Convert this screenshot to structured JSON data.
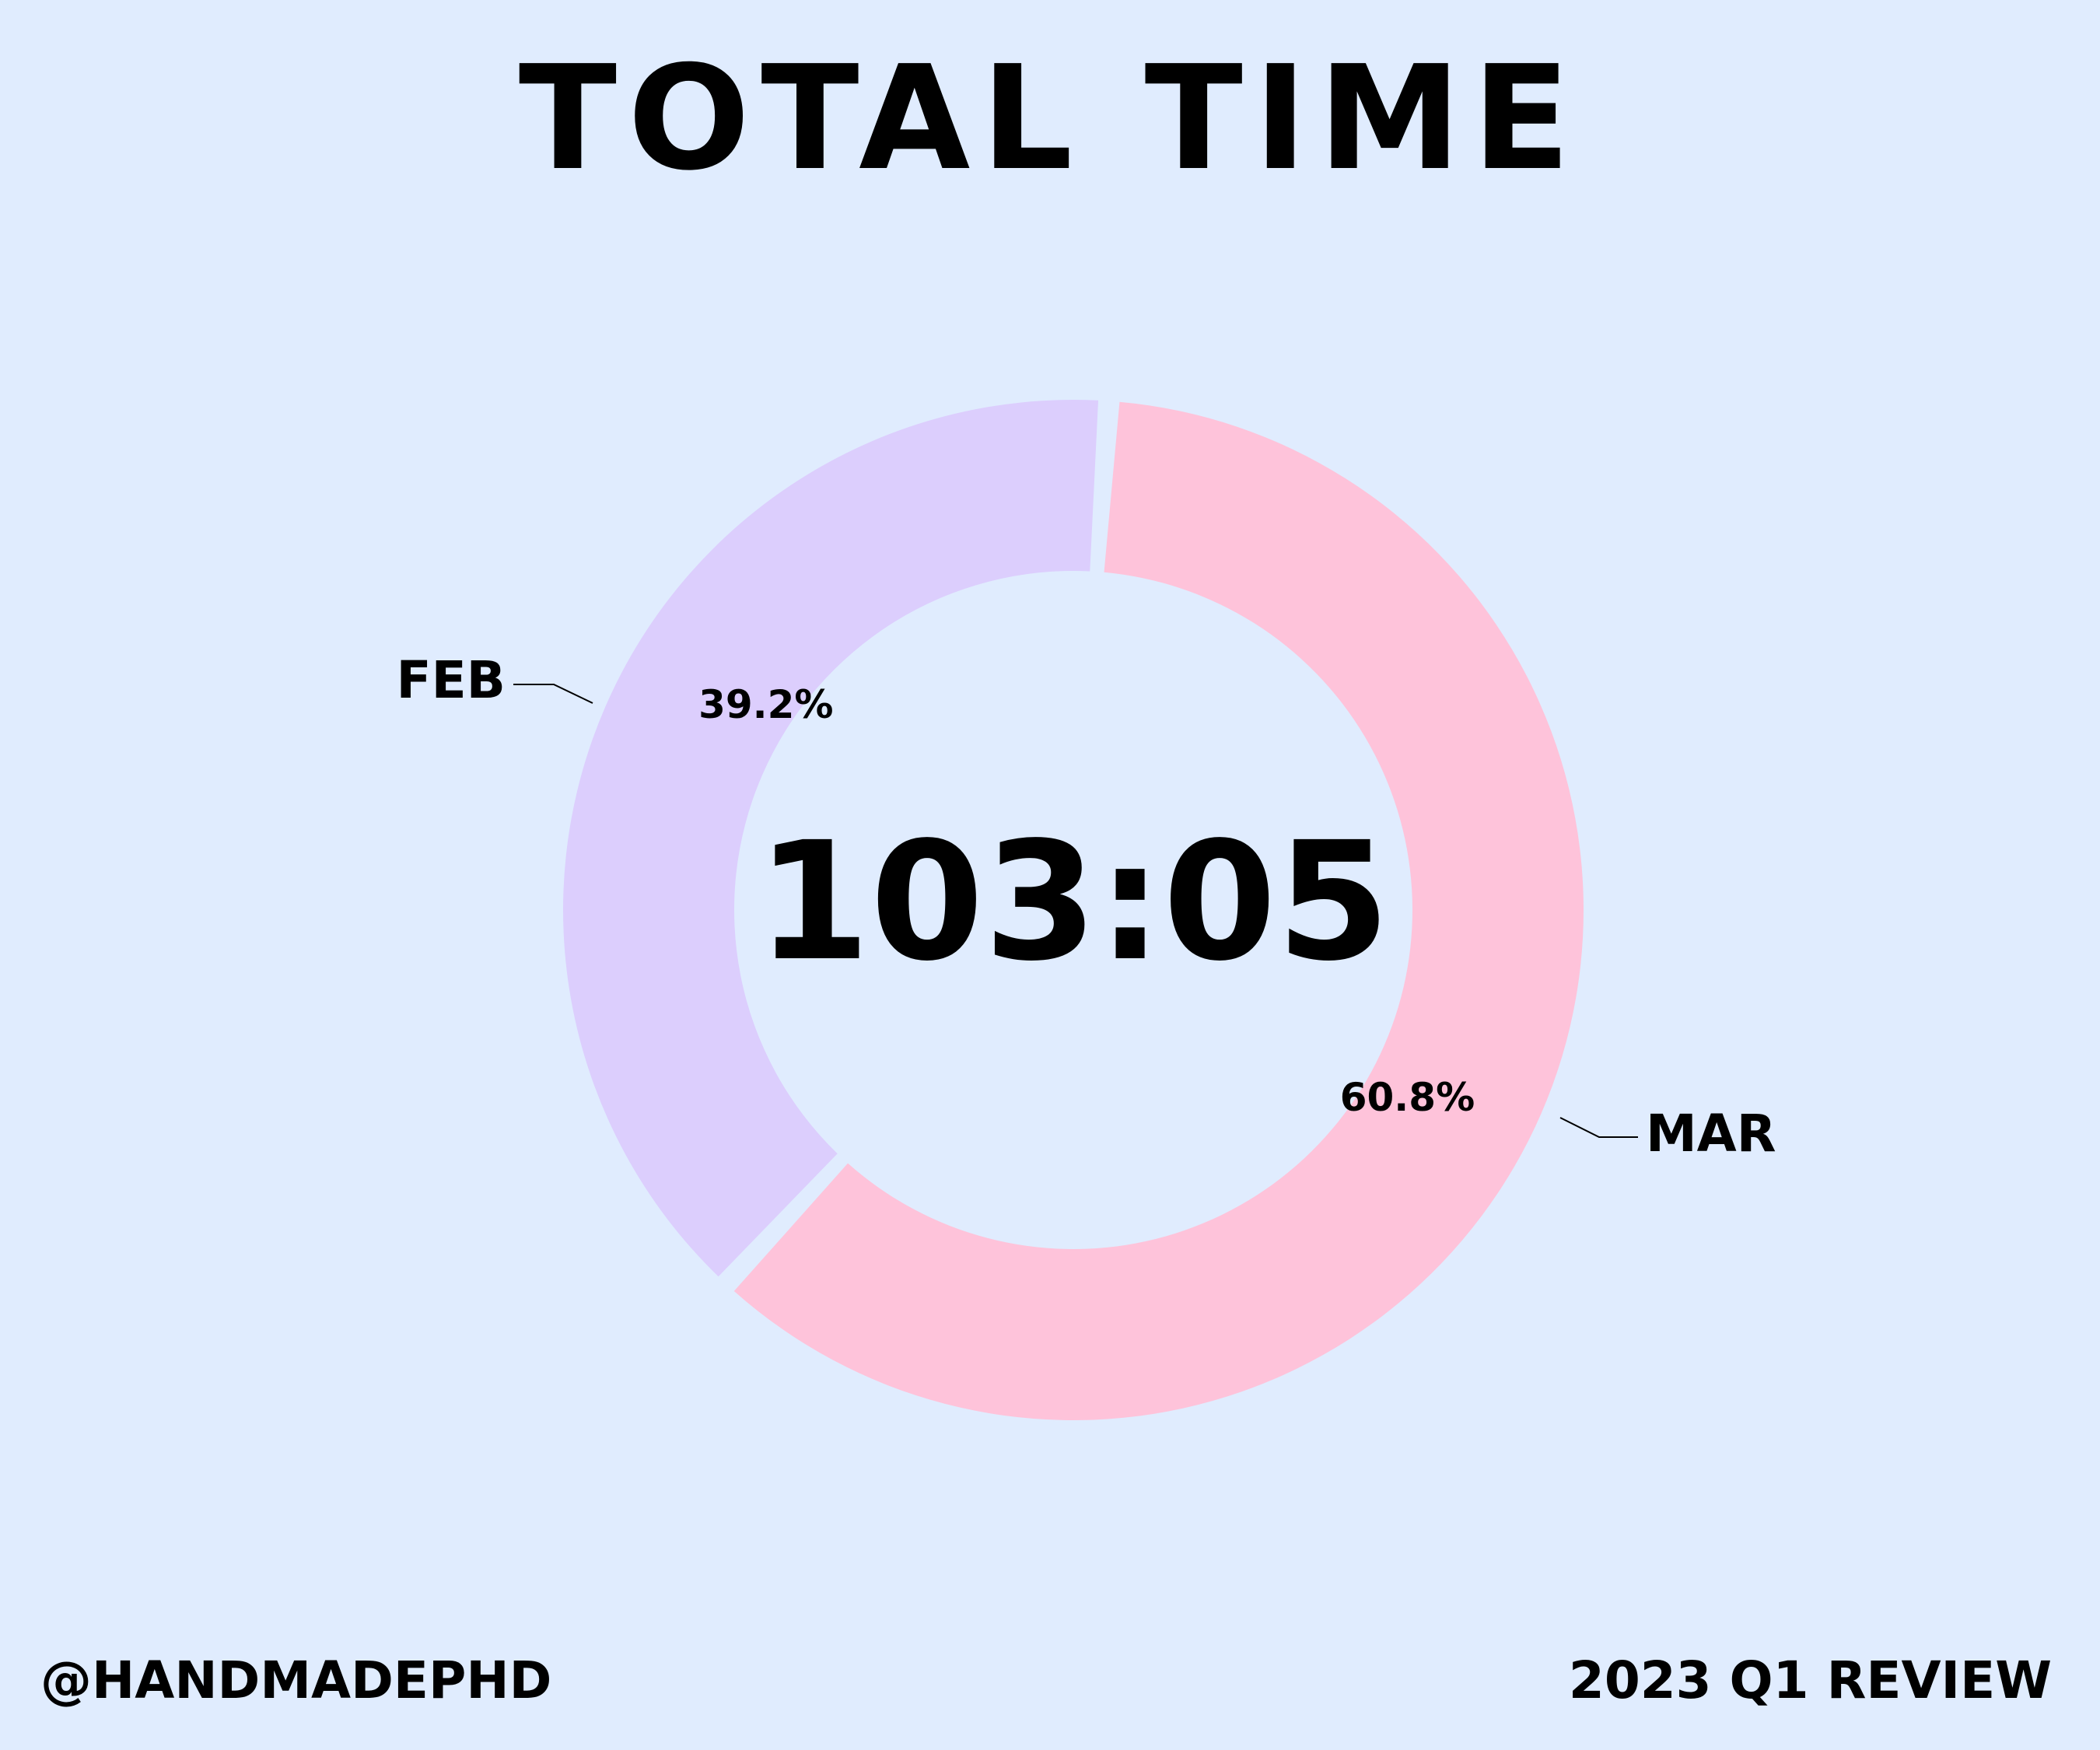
{
  "title": "TOTAL TIME",
  "chart_data": {
    "type": "pie",
    "style": "donut",
    "categories": [
      "FEB",
      "MAR"
    ],
    "values": [
      39.2,
      60.8
    ],
    "value_labels": [
      "39.2%",
      "60.8%"
    ],
    "center_label": "103:05",
    "colors": [
      "#dccefd",
      "#fec3da"
    ]
  },
  "footer": {
    "handle": "@HANDMADEPHD",
    "report": "2023 Q1 REVIEW"
  },
  "colors": {
    "background": "#e0ecfe",
    "text": "#000000"
  }
}
